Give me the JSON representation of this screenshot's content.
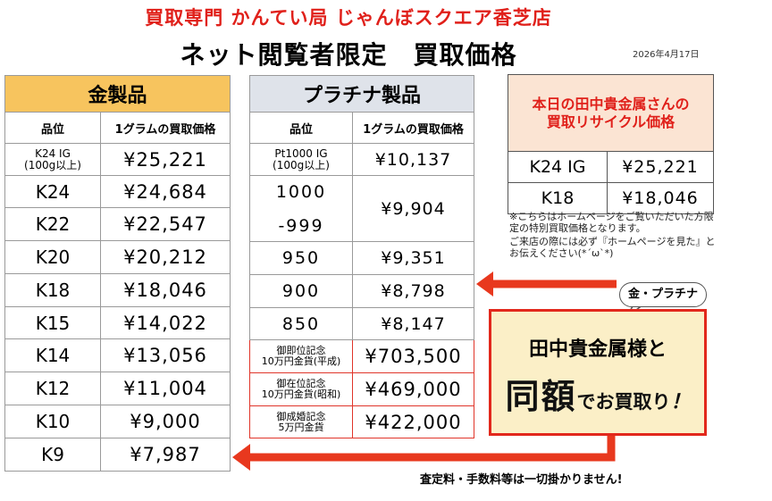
{
  "store_title": "買取専門 かんてい局 じゃんぼスクエア香芝店",
  "page_title": "ネット閲覧者限定　買取価格",
  "date": "2026年4月17日",
  "column_headers": {
    "grade": "品位",
    "price": "1グラムの買取価格"
  },
  "gold": {
    "title": "金製品",
    "rows": [
      {
        "grade": "K24 IG\n(100g以上)",
        "price": "¥25,221"
      },
      {
        "grade": "K24",
        "price": "¥24,684"
      },
      {
        "grade": "K22",
        "price": "¥22,547"
      },
      {
        "grade": "K20",
        "price": "¥20,212"
      },
      {
        "grade": "K18",
        "price": "¥18,046"
      },
      {
        "grade": "K15",
        "price": "¥14,022"
      },
      {
        "grade": "K14",
        "price": "¥13,056"
      },
      {
        "grade": "K12",
        "price": "¥11,004"
      },
      {
        "grade": "K10",
        "price": "¥9,000"
      },
      {
        "grade": "K9",
        "price": "¥7,987"
      }
    ]
  },
  "platinum": {
    "title": "プラチナ製品",
    "rows": [
      {
        "grade": "Pt1000 IG\n(100g以上)",
        "price": "¥10,137"
      },
      {
        "grade_line1": "1000",
        "grade_line2": "-999",
        "price": "¥9,904"
      },
      {
        "grade": "950",
        "price": "¥9,351"
      },
      {
        "grade": "900",
        "price": "¥8,798"
      },
      {
        "grade": "850",
        "price": "¥8,147"
      }
    ],
    "coins": [
      {
        "grade": "御即位記念\n10万円金貨(平成)",
        "price": "¥703,500"
      },
      {
        "grade": "御在位記念\n10万円金貨(昭和)",
        "price": "¥469,000"
      },
      {
        "grade": "御成婚記念\n5万円金貨",
        "price": "¥422,000"
      }
    ]
  },
  "today": {
    "title_line1": "本日の田中貴金属さんの",
    "title_line2": "買取リサイクル価格",
    "rows": [
      {
        "grade": "K24 IG",
        "price": "¥25,221"
      },
      {
        "grade": "K18",
        "price": "¥18,046"
      }
    ]
  },
  "notes": [
    "※こちらはホームページをご覧いただいた方限定の特別買取価格となります。",
    "ご来店の際には必ず『ホームページを見た』とお伝えください(*´ω`*)"
  ],
  "bubble": "金・プラチナ",
  "callout": {
    "line1": "田中貴金属様と",
    "big": "同額",
    "mid": "でお買取り",
    "excl": "！"
  },
  "footer": "査定料・手数料等は一切掛かりません!",
  "colors": {
    "accent_red": "#e0201a",
    "gold_header": "#f7c45e",
    "platinum_header": "#dfe3ea",
    "callout_bg": "#fbefc7",
    "arrow": "#e8381e"
  }
}
